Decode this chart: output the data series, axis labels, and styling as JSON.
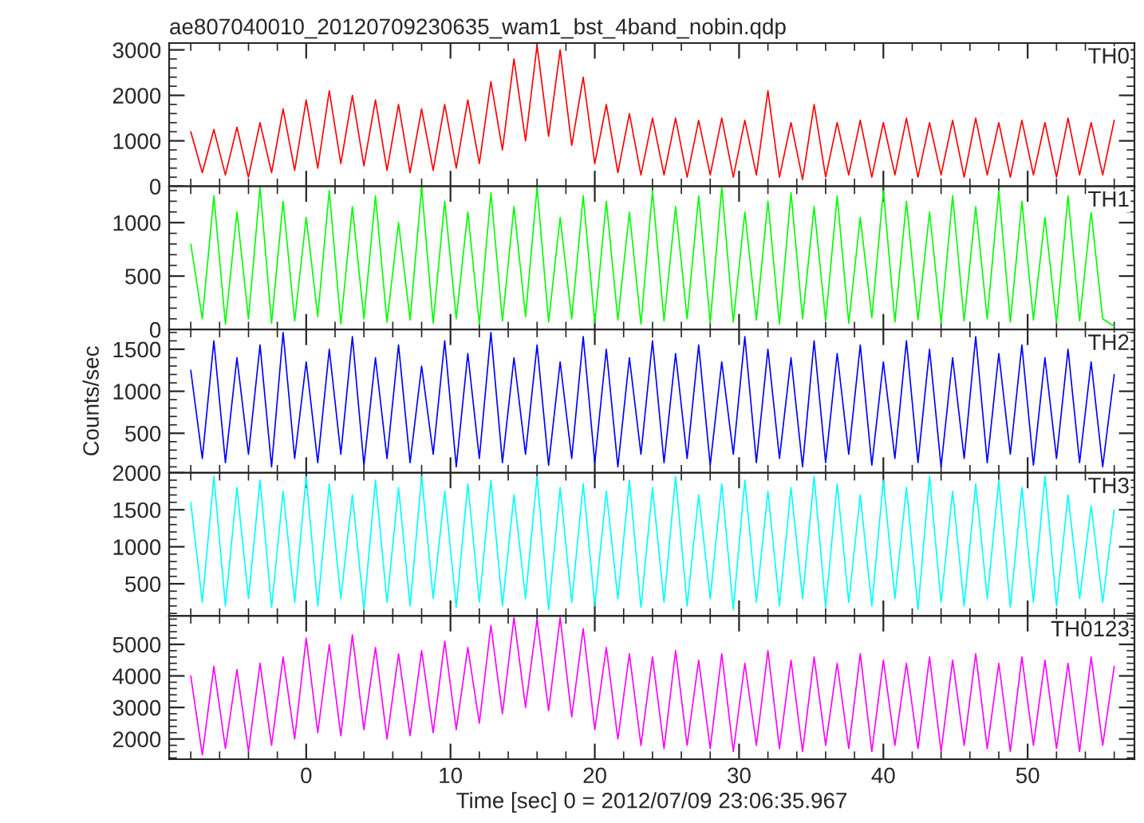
{
  "chart_data": [
    {
      "type": "line",
      "title": "ae807040010_20120709230635_wam1_bst_4band_nobin.qdp",
      "x": [
        -8,
        -7.2,
        -6.4,
        -5.6,
        -4.8,
        -4,
        -3.2,
        -2.4,
        -1.6,
        -0.8,
        0,
        0.8,
        1.6,
        2.4,
        3.2,
        4,
        4.8,
        5.6,
        6.4,
        7.2,
        8,
        8.8,
        9.6,
        10.4,
        11.2,
        12,
        12.8,
        13.6,
        14.4,
        15.2,
        16,
        16.8,
        17.6,
        18.4,
        19.2,
        20,
        20.8,
        21.6,
        22.4,
        23.2,
        24,
        24.8,
        25.6,
        26.4,
        27.2,
        28,
        28.8,
        29.6,
        30.4,
        31.2,
        32,
        32.8,
        33.6,
        34.4,
        35.2,
        36,
        36.8,
        37.6,
        38.4,
        39.2,
        40,
        40.8,
        41.6,
        42.4,
        43.2,
        44,
        44.8,
        45.6,
        46.4,
        47.2,
        48,
        48.8,
        49.6,
        50.4,
        51.2,
        52,
        52.8,
        53.6,
        54.4,
        55.2,
        56
      ],
      "series": [
        {
          "name": "TH0",
          "color": "#ff0000",
          "values": [
            1200,
            300,
            1250,
            250,
            1300,
            200,
            1400,
            300,
            1700,
            350,
            1900,
            400,
            2100,
            500,
            2000,
            450,
            1900,
            350,
            1800,
            300,
            1700,
            350,
            1800,
            400,
            1900,
            500,
            2300,
            800,
            2800,
            1000,
            3100,
            1100,
            3000,
            900,
            2400,
            500,
            1800,
            300,
            1600,
            250,
            1500,
            250,
            1500,
            200,
            1450,
            250,
            1500,
            200,
            1450,
            250,
            2100,
            200,
            1400,
            150,
            1800,
            200,
            1400,
            250,
            1450,
            200,
            1400,
            250,
            1500,
            200,
            1400,
            250,
            1450,
            200,
            1500,
            250,
            1400,
            200,
            1450,
            250,
            1400,
            200,
            1500,
            250,
            1400,
            250,
            1450
          ]
        }
      ],
      "xlim": [
        -9.5,
        57.4
      ],
      "xticks": [
        0,
        10,
        20,
        30,
        40,
        50
      ],
      "ylim": [
        0,
        3150
      ],
      "yticks": [
        0,
        1000,
        2000,
        3000
      ],
      "tick_labels": "y",
      "line_style": "solid"
    },
    {
      "type": "line",
      "x": [
        -8,
        -7.2,
        -6.4,
        -5.6,
        -4.8,
        -4,
        -3.2,
        -2.4,
        -1.6,
        -0.8,
        0,
        0.8,
        1.6,
        2.4,
        3.2,
        4,
        4.8,
        5.6,
        6.4,
        7.2,
        8,
        8.8,
        9.6,
        10.4,
        11.2,
        12,
        12.8,
        13.6,
        14.4,
        15.2,
        16,
        16.8,
        17.6,
        18.4,
        19.2,
        20,
        20.8,
        21.6,
        22.4,
        23.2,
        24,
        24.8,
        25.6,
        26.4,
        27.2,
        28,
        28.8,
        29.6,
        30.4,
        31.2,
        32,
        32.8,
        33.6,
        34.4,
        35.2,
        36,
        36.8,
        37.6,
        38.4,
        39.2,
        40,
        40.8,
        41.6,
        42.4,
        43.2,
        44,
        44.8,
        45.6,
        46.4,
        47.2,
        48,
        48.8,
        49.6,
        50.4,
        51.2,
        52,
        52.8,
        53.6,
        54.4,
        55.2,
        56
      ],
      "series": [
        {
          "name": "TH1",
          "color": "#00ff00",
          "values": [
            800,
            100,
            1250,
            50,
            1100,
            100,
            1330,
            60,
            1200,
            80,
            1050,
            120,
            1300,
            50,
            1150,
            100,
            1250,
            70,
            1000,
            90,
            1330,
            60,
            1200,
            100,
            1100,
            50,
            1280,
            80,
            1150,
            120,
            1330,
            70,
            1050,
            100,
            1250,
            60,
            1200,
            90,
            1100,
            50,
            1300,
            80,
            1150,
            100,
            1250,
            60,
            1330,
            70,
            1100,
            90,
            1200,
            50,
            1280,
            100,
            1150,
            80,
            1250,
            60,
            1050,
            110,
            1300,
            70,
            1200,
            90,
            1100,
            60,
            1250,
            80,
            1150,
            100,
            1300,
            70,
            1200,
            90,
            1050,
            60,
            1250,
            80,
            1100,
            100,
            30
          ]
        }
      ],
      "xlim": [
        -9.5,
        57.4
      ],
      "xticks": [
        0,
        10,
        20,
        30,
        40,
        50
      ],
      "ylim": [
        0,
        1340
      ],
      "yticks": [
        0,
        500,
        1000
      ],
      "tick_labels": "y",
      "line_style": "solid"
    },
    {
      "type": "line",
      "ylabel": "Counts/sec",
      "x": [
        -8,
        -7.2,
        -6.4,
        -5.6,
        -4.8,
        -4,
        -3.2,
        -2.4,
        -1.6,
        -0.8,
        0,
        0.8,
        1.6,
        2.4,
        3.2,
        4,
        4.8,
        5.6,
        6.4,
        7.2,
        8,
        8.8,
        9.6,
        10.4,
        11.2,
        12,
        12.8,
        13.6,
        14.4,
        15.2,
        16,
        16.8,
        17.6,
        18.4,
        19.2,
        20,
        20.8,
        21.6,
        22.4,
        23.2,
        24,
        24.8,
        25.6,
        26.4,
        27.2,
        28,
        28.8,
        29.6,
        30.4,
        31.2,
        32,
        32.8,
        33.6,
        34.4,
        35.2,
        36,
        36.8,
        37.6,
        38.4,
        39.2,
        40,
        40.8,
        41.6,
        42.4,
        43.2,
        44,
        44.8,
        45.6,
        46.4,
        47.2,
        48,
        48.8,
        49.6,
        50.4,
        51.2,
        52,
        52.8,
        53.6,
        54.4,
        55.2,
        56
      ],
      "series": [
        {
          "name": "TH2",
          "color": "#0000ff",
          "values": [
            1250,
            200,
            1600,
            150,
            1400,
            250,
            1550,
            100,
            1700,
            200,
            1350,
            150,
            1500,
            250,
            1650,
            120,
            1400,
            200,
            1550,
            150,
            1300,
            250,
            1600,
            100,
            1450,
            200,
            1700,
            150,
            1400,
            250,
            1550,
            120,
            1350,
            200,
            1650,
            150,
            1500,
            100,
            1400,
            250,
            1600,
            150,
            1450,
            200,
            1550,
            120,
            1350,
            250,
            1650,
            150,
            1500,
            200,
            1400,
            100,
            1600,
            150,
            1450,
            250,
            1550,
            120,
            1350,
            200,
            1600,
            150,
            1500,
            100,
            1400,
            200,
            1650,
            150,
            1450,
            250,
            1550,
            120,
            1400,
            200,
            1500,
            150,
            1350,
            100,
            1200
          ]
        }
      ],
      "xlim": [
        -9.5,
        57.4
      ],
      "xticks": [
        0,
        10,
        20,
        30,
        40,
        50
      ],
      "ylim": [
        30,
        1735
      ],
      "yticks": [
        500,
        1000,
        1500
      ],
      "tick_labels": "y",
      "line_style": "solid"
    },
    {
      "type": "line",
      "x": [
        -8,
        -7.2,
        -6.4,
        -5.6,
        -4.8,
        -4,
        -3.2,
        -2.4,
        -1.6,
        -0.8,
        0,
        0.8,
        1.6,
        2.4,
        3.2,
        4,
        4.8,
        5.6,
        6.4,
        7.2,
        8,
        8.8,
        9.6,
        10.4,
        11.2,
        12,
        12.8,
        13.6,
        14.4,
        15.2,
        16,
        16.8,
        17.6,
        18.4,
        19.2,
        20,
        20.8,
        21.6,
        22.4,
        23.2,
        24,
        24.8,
        25.6,
        26.4,
        27.2,
        28,
        28.8,
        29.6,
        30.4,
        31.2,
        32,
        32.8,
        33.6,
        34.4,
        35.2,
        36,
        36.8,
        37.6,
        38.4,
        39.2,
        40,
        40.8,
        41.6,
        42.4,
        43.2,
        44,
        44.8,
        45.6,
        46.4,
        47.2,
        48,
        48.8,
        49.6,
        50.4,
        51.2,
        52,
        52.8,
        53.6,
        54.4,
        55.2,
        56
      ],
      "series": [
        {
          "name": "TH3",
          "color": "#00ffff",
          "values": [
            1600,
            250,
            1950,
            200,
            1800,
            300,
            1900,
            180,
            1750,
            250,
            1950,
            200,
            1850,
            300,
            1700,
            150,
            1900,
            250,
            1800,
            200,
            1950,
            300,
            1750,
            180,
            1850,
            250,
            1900,
            200,
            1700,
            300,
            1950,
            150,
            1800,
            250,
            1850,
            200,
            1750,
            300,
            1900,
            180,
            1800,
            250,
            1950,
            200,
            1700,
            300,
            1850,
            150,
            1900,
            250,
            1750,
            200,
            1800,
            300,
            1950,
            180,
            1850,
            250,
            1700,
            200,
            1900,
            300,
            1800,
            150,
            1950,
            250,
            1750,
            200,
            1850,
            300,
            1900,
            180,
            1800,
            250,
            1950,
            200,
            1700,
            300,
            1550,
            250,
            1500
          ]
        }
      ],
      "xlim": [
        -9.5,
        57.4
      ],
      "xticks": [
        0,
        10,
        20,
        30,
        40,
        50
      ],
      "ylim": [
        65,
        2000
      ],
      "yticks": [
        500,
        1000,
        1500,
        2000
      ],
      "tick_labels": "y",
      "line_style": "solid"
    },
    {
      "type": "line",
      "xlabel": "Time [sec] 0 = 2012/07/09 23:06:35.967",
      "x": [
        -8,
        -7.2,
        -6.4,
        -5.6,
        -4.8,
        -4,
        -3.2,
        -2.4,
        -1.6,
        -0.8,
        0,
        0.8,
        1.6,
        2.4,
        3.2,
        4,
        4.8,
        5.6,
        6.4,
        7.2,
        8,
        8.8,
        9.6,
        10.4,
        11.2,
        12,
        12.8,
        13.6,
        14.4,
        15.2,
        16,
        16.8,
        17.6,
        18.4,
        19.2,
        20,
        20.8,
        21.6,
        22.4,
        23.2,
        24,
        24.8,
        25.6,
        26.4,
        27.2,
        28,
        28.8,
        29.6,
        30.4,
        31.2,
        32,
        32.8,
        33.6,
        34.4,
        35.2,
        36,
        36.8,
        37.6,
        38.4,
        39.2,
        40,
        40.8,
        41.6,
        42.4,
        43.2,
        44,
        44.8,
        45.6,
        46.4,
        47.2,
        48,
        48.8,
        49.6,
        50.4,
        51.2,
        52,
        52.8,
        53.6,
        54.4,
        55.2,
        56
      ],
      "series": [
        {
          "name": "TH0123",
          "color": "#ff00ff",
          "values": [
            4000,
            1500,
            4300,
            1700,
            4200,
            1600,
            4400,
            1800,
            4600,
            2000,
            5200,
            2200,
            5000,
            2100,
            5300,
            2300,
            4900,
            2000,
            4700,
            2100,
            4800,
            2200,
            5100,
            2300,
            4900,
            2500,
            5600,
            2800,
            5850,
            3000,
            5800,
            2900,
            5850,
            2700,
            5500,
            2300,
            4900,
            2000,
            4700,
            1800,
            4600,
            1700,
            4800,
            1800,
            4500,
            1700,
            4700,
            1600,
            4400,
            1800,
            4800,
            1700,
            4500,
            1600,
            4600,
            1800,
            4400,
            1700,
            4700,
            1600,
            4500,
            1800,
            4400,
            1700,
            4600,
            1600,
            4500,
            1800,
            4700,
            1700,
            4400,
            1600,
            4600,
            1800,
            4500,
            1700,
            4400,
            1600,
            4600,
            1800,
            4300
          ]
        }
      ],
      "xlim": [
        -9.5,
        57.4
      ],
      "xticks": [
        0,
        10,
        20,
        30,
        40,
        50
      ],
      "ylim": [
        1360,
        5900
      ],
      "yticks": [
        2000,
        3000,
        4000,
        5000
      ],
      "line_style": "solid"
    }
  ]
}
